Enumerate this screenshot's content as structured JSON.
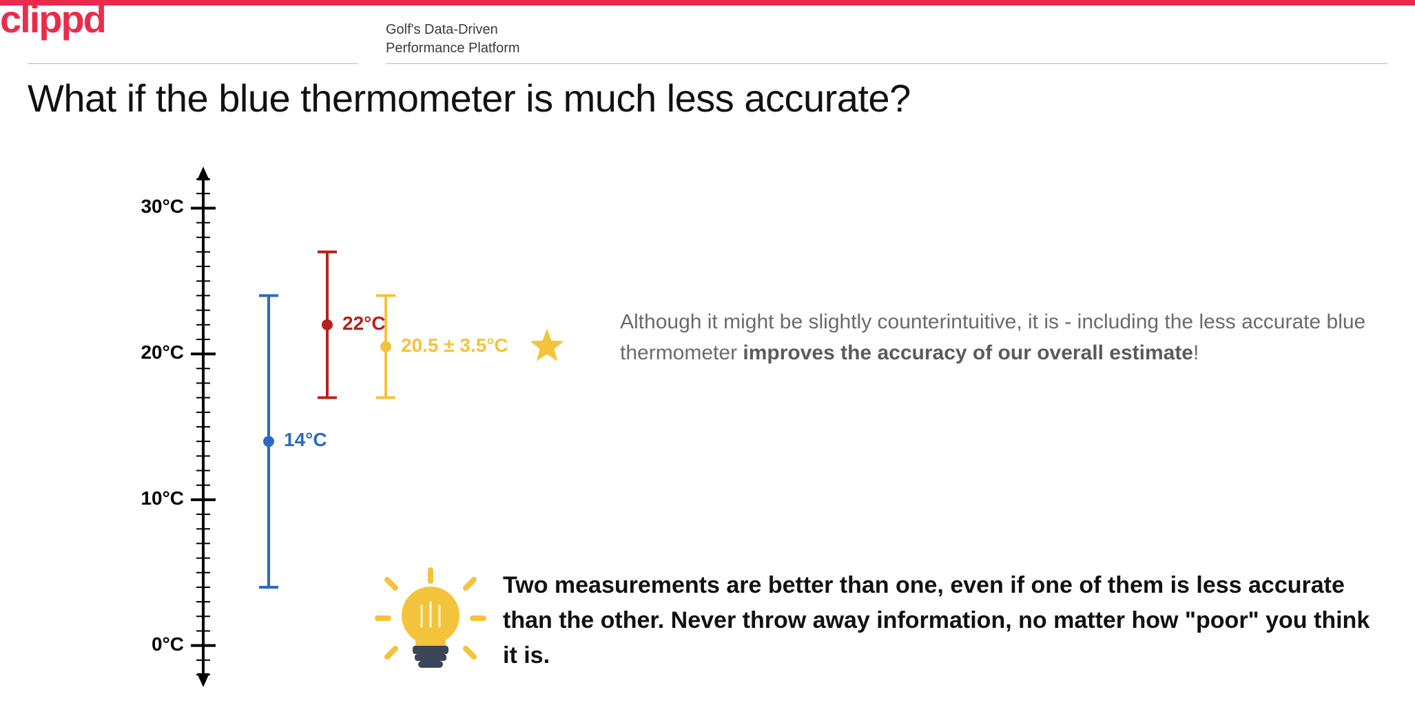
{
  "brand": {
    "logo": "clippd",
    "tagline1": "Golf's Data-Driven",
    "tagline2": "Performance Platform",
    "accent": "#ea2b4d"
  },
  "title": "What if the blue thermometer is much less accurate?",
  "chart": {
    "type": "errorbar",
    "y_min": -2,
    "y_max": 32,
    "axis_ticks": [
      0,
      10,
      20,
      30
    ],
    "axis_labels": [
      "0°C",
      "10°C",
      "20°C",
      "30°C"
    ],
    "axis_color": "#000000",
    "minor_step": 1,
    "series": [
      {
        "name": "blue",
        "x": 1,
        "value": 14,
        "low": 4,
        "high": 24,
        "label": "14°C",
        "color": "#2d68c4"
      },
      {
        "name": "red",
        "x": 2,
        "value": 22,
        "low": 17,
        "high": 27,
        "label": "22°C",
        "color": "#b8201c"
      },
      {
        "name": "combo",
        "x": 3,
        "value": 20.5,
        "low": 17,
        "high": 24,
        "label": "20.5 ± 3.5°C",
        "color": "#f4c33c",
        "star": true
      }
    ],
    "stroke_width": 4,
    "cap_half": 14,
    "marker_r": 8,
    "x_spacing": 85,
    "x_start": 95,
    "star_color": "#f4c33c"
  },
  "explain": {
    "pre": "Although it might be slightly counterintuitive, it is - including the less accurate blue thermometer ",
    "bold": "improves the accuracy of our overall estimate",
    "post": "!",
    "text_color": "#6a6a6a"
  },
  "takeaway": "Two measurements are better than one, even if one of them is less accurate than the other. Never throw away information, no matter how \"poor\" you think it is.",
  "bulb_color": "#f4c33c",
  "bulb_base": "#3a4558"
}
